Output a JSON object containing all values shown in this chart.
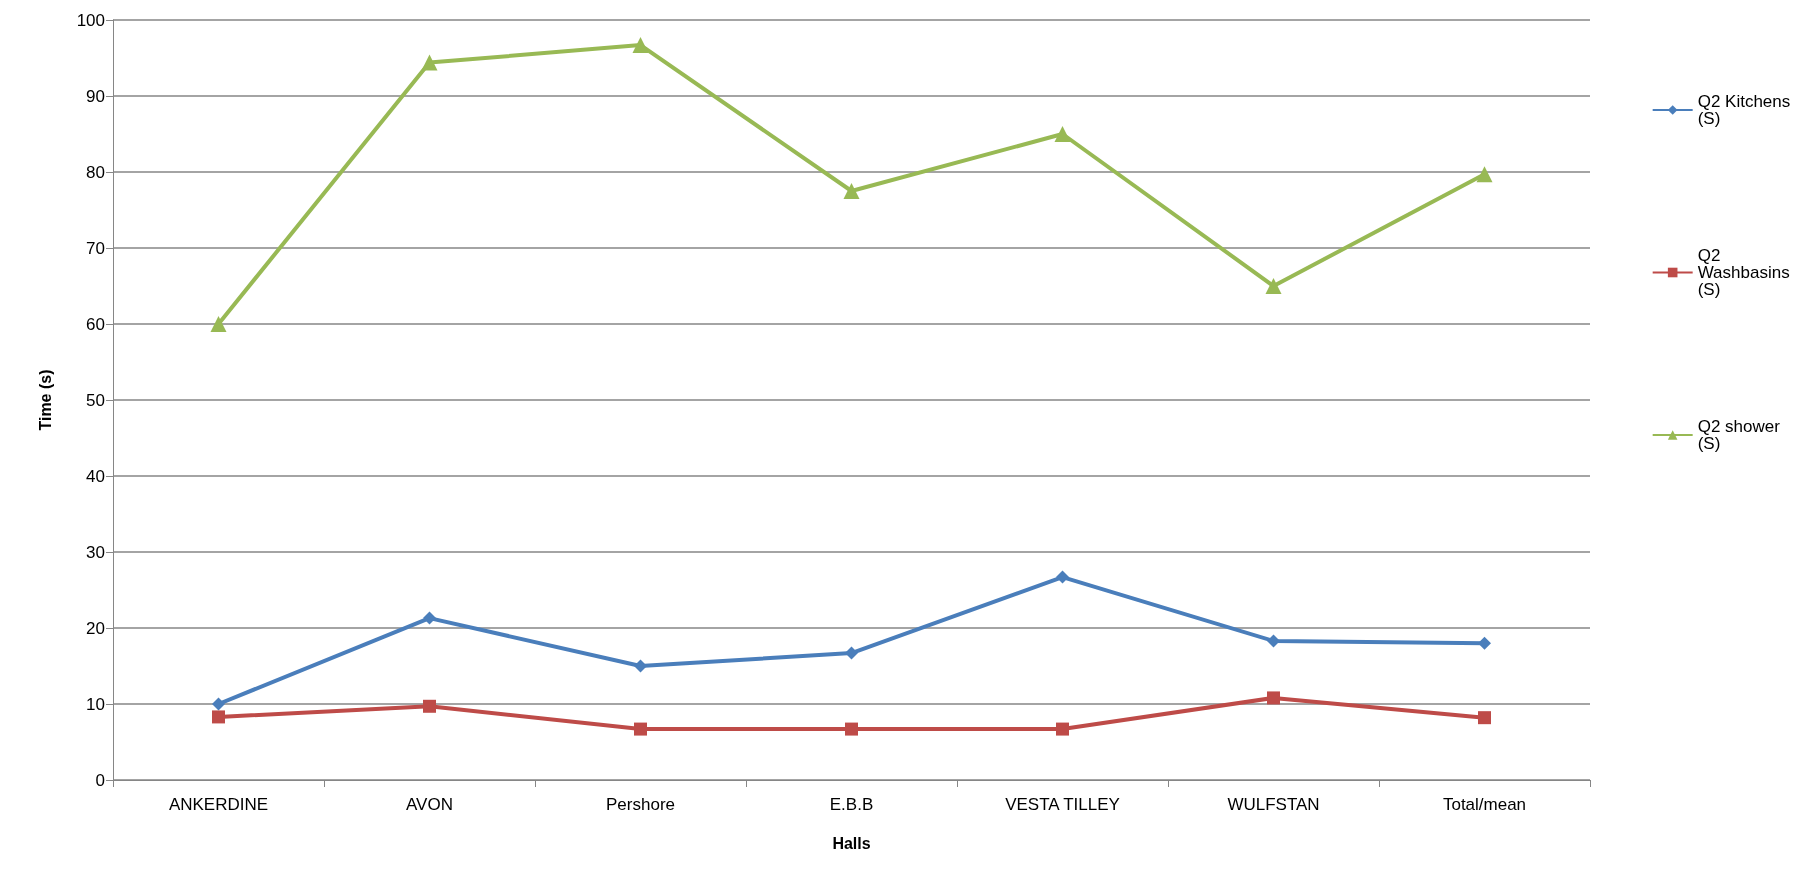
{
  "chart_data": {
    "type": "line",
    "xlabel": "Halls",
    "ylabel": "Time (s)",
    "categories": [
      "ANKERDINE",
      "AVON",
      "Pershore",
      "E.B.B",
      "VESTA TILLEY",
      "WULFSTAN",
      "Total/mean"
    ],
    "series": [
      {
        "name": "Q2 Kitchens (S)",
        "color": "#4a7ebb",
        "marker": "diamond",
        "values": [
          10,
          21.3,
          15,
          16.7,
          26.7,
          18.3,
          18
        ]
      },
      {
        "name": "Q2 Washbasins (S)",
        "color": "#be4b48",
        "marker": "square",
        "values": [
          8.3,
          9.7,
          6.7,
          6.7,
          6.7,
          10.8,
          8.2
        ]
      },
      {
        "name": "Q2 shower (S)",
        "color": "#98b954",
        "marker": "triangle",
        "values": [
          60,
          94.4,
          96.7,
          77.5,
          85,
          65,
          79.7
        ]
      }
    ],
    "ylim": [
      0,
      100
    ],
    "yticks": [
      0,
      10,
      20,
      30,
      40,
      50,
      60,
      70,
      80,
      90,
      100
    ],
    "grid": "y",
    "legend": "right",
    "line_style": "solid"
  }
}
